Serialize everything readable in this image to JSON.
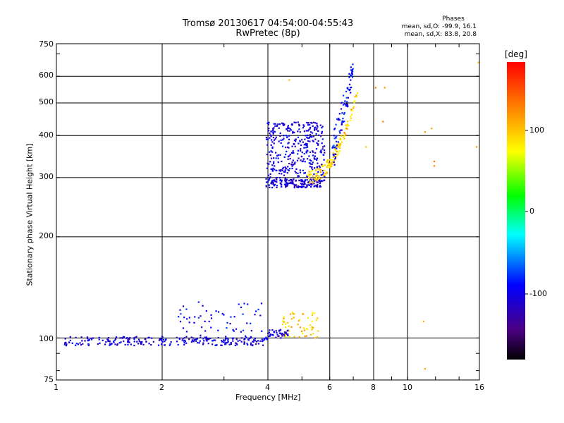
{
  "header": {
    "title_line1": "Tromsø 20130617 04:54:00-04:55:43",
    "title_line2": "RwPretec (8p)",
    "phases_label": "Phases",
    "phases_line1": "mean, sd,O: -99.9, 16.1",
    "phases_line2": "mean, sd,X: 83.8, 20.8"
  },
  "colorbar": {
    "unit": "[deg]",
    "ticks": [
      "100",
      "0",
      "-100"
    ],
    "range": [
      -180,
      180
    ]
  },
  "chart_data": {
    "type": "scatter",
    "xlabel": "Frequency [MHz]",
    "ylabel": "Stationary phase Virtual Height [km]",
    "xscale": "log",
    "yscale": "log",
    "xlim": [
      1,
      16
    ],
    "ylim": [
      75,
      750
    ],
    "x_ticks": [
      "1",
      "2",
      "4",
      "6",
      "8",
      "10",
      "16"
    ],
    "y_ticks": [
      "750",
      "600",
      "500",
      "400",
      "300",
      "200",
      "100",
      "75"
    ],
    "grid_x": [
      2,
      4,
      6,
      8,
      10
    ],
    "grid_y": [
      600,
      500,
      400,
      300,
      200,
      100
    ],
    "colormap": "rainbow",
    "clusters": [
      {
        "desc": "E-layer trace O",
        "x_range": [
          1.05,
          4.0
        ],
        "y_center": 98,
        "y_spread": 3,
        "phase": -105,
        "count": 260
      },
      {
        "desc": "E-layer scattered",
        "x_range": [
          2.2,
          3.9
        ],
        "y_range": [
          100,
          128
        ],
        "phase": -100,
        "count": 60
      },
      {
        "desc": "E-layer upper",
        "x_range": [
          4.0,
          4.6
        ],
        "y_center": 103,
        "y_spread": 3,
        "phase": -110,
        "count": 45
      },
      {
        "desc": "E-layer X",
        "x_range": [
          4.4,
          5.6
        ],
        "y_range": [
          100,
          120
        ],
        "phase": 95,
        "count": 55
      },
      {
        "desc": "F-layer cloud O",
        "x_range": [
          3.95,
          5.8
        ],
        "y_range": [
          280,
          440
        ],
        "phase": -105,
        "count": 420
      },
      {
        "desc": "F-layer base O",
        "x_range": [
          3.95,
          5.7
        ],
        "y_center": 288,
        "y_spread": 8,
        "phase": -108,
        "count": 90
      },
      {
        "desc": "F-layer trace X",
        "x_range": [
          5.2,
          7.2
        ],
        "y_range": [
          300,
          540
        ],
        "phase": 90,
        "count": 150
      },
      {
        "desc": "F-layer cusp O",
        "x_range": [
          6.1,
          7.0
        ],
        "y_range": [
          320,
          640
        ],
        "phase": -95,
        "count": 90
      },
      {
        "desc": "outliers",
        "points": [
          [
            8.1,
            555
          ],
          [
            8.6,
            555
          ],
          [
            8.5,
            440
          ],
          [
            11.2,
            410
          ],
          [
            11.7,
            420
          ],
          [
            11.9,
            335
          ],
          [
            11.9,
            325
          ],
          [
            11.1,
            112
          ],
          [
            11.2,
            81
          ],
          [
            15.7,
            370
          ],
          [
            15.9,
            660
          ],
          [
            4.6,
            585
          ],
          [
            7.6,
            370
          ]
        ],
        "phase": 110
      }
    ]
  }
}
